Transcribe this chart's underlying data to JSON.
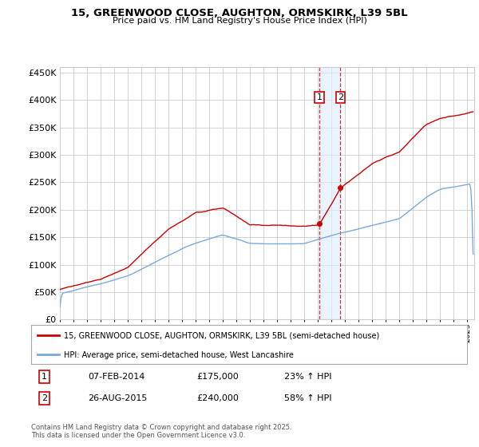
{
  "title": "15, GREENWOOD CLOSE, AUGHTON, ORMSKIRK, L39 5BL",
  "subtitle": "Price paid vs. HM Land Registry's House Price Index (HPI)",
  "ytick_values": [
    0,
    50000,
    100000,
    150000,
    200000,
    250000,
    300000,
    350000,
    400000,
    450000
  ],
  "year_start": 1995,
  "year_end": 2025,
  "sale1_date": "07-FEB-2014",
  "sale1_price": 175000,
  "sale1_hpi": "23% ↑ HPI",
  "sale1_year": 2014.1,
  "sale2_date": "26-AUG-2015",
  "sale2_price": 240000,
  "sale2_hpi": "58% ↑ HPI",
  "sale2_year": 2015.65,
  "legend_line1": "15, GREENWOOD CLOSE, AUGHTON, ORMSKIRK, L39 5BL (semi-detached house)",
  "legend_line2": "HPI: Average price, semi-detached house, West Lancashire",
  "footnote": "Contains HM Land Registry data © Crown copyright and database right 2025.\nThis data is licensed under the Open Government Licence v3.0.",
  "hpi_color": "#7aaadd",
  "price_color": "#cc0000",
  "background_color": "#ffffff",
  "grid_color": "#cccccc",
  "shade_color": "#ddeeff"
}
